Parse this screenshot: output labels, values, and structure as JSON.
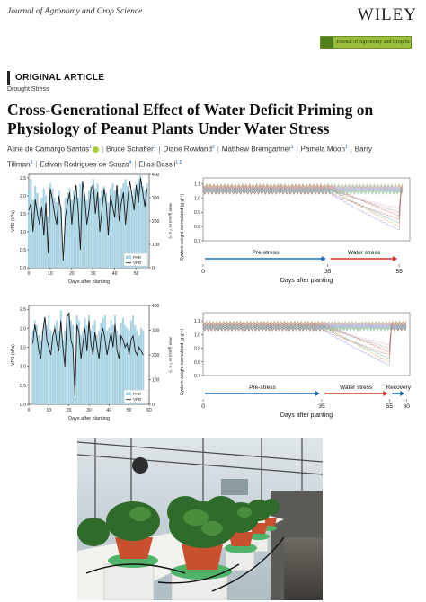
{
  "header": {
    "journal": "Journal of Agronomy and Crop Science",
    "publisher": "WILEY",
    "banner_text": "Journal of Agronomy and Crop Science"
  },
  "article": {
    "type": "ORIGINAL ARTICLE",
    "section": "Drought Stress",
    "title": "Cross-Generational Effect of Water Deficit Priming on Physiology of Peanut Plants Under Water Stress",
    "authors": [
      {
        "name": "Aline de Camargo Santos",
        "aff": "1"
      },
      {
        "name": "Bruce Schaffer",
        "aff": "1"
      },
      {
        "name": "Diane Rowland",
        "aff": "2"
      },
      {
        "name": "Matthew Bremgartner",
        "aff": "1"
      },
      {
        "name": "Pamela Moon",
        "aff": "1"
      },
      {
        "name": "Barry Tillman",
        "aff": "3"
      },
      {
        "name": "Edivan Rodrigues de Souza",
        "aff": "4"
      },
      {
        "name": "Elias Bassil",
        "aff": "1,5"
      }
    ]
  },
  "colors": {
    "par": "#a7d3e3",
    "vpd": "#1a1a1a",
    "arrow_blue": "#1f6db5",
    "arrow_red": "#d9342b"
  },
  "chart_data": [
    {
      "type": "bar",
      "id": "weather-1",
      "xlabel": "Days after planting",
      "ylabel_left": "VPD (kPa)",
      "ylabel_right": "PAR (μmol m⁻² s⁻¹)",
      "x_ticks": [
        "0",
        "10",
        "20",
        "30",
        "40",
        "50"
      ],
      "y_left_ticks": [
        "0.0",
        "0.5",
        "1.0",
        "1.5",
        "2.0",
        "2.5"
      ],
      "y_right_ticks": [
        "0",
        "100",
        "200",
        "300",
        "400"
      ],
      "ylim_left": [
        0,
        2.6
      ],
      "ylim_right": [
        0,
        400
      ],
      "legend": [
        "PAR",
        "VPD"
      ],
      "days": [
        0,
        1,
        2,
        3,
        4,
        5,
        6,
        7,
        8,
        9,
        10,
        11,
        12,
        13,
        14,
        15,
        16,
        17,
        18,
        19,
        20,
        21,
        22,
        23,
        24,
        25,
        26,
        27,
        28,
        29,
        30,
        31,
        32,
        33,
        34,
        35,
        36,
        37,
        38,
        39,
        40,
        41,
        42,
        43,
        44,
        45,
        46,
        47,
        48,
        49,
        50,
        51,
        52,
        53,
        54,
        55
      ],
      "par": [
        330,
        380,
        290,
        350,
        320,
        260,
        300,
        340,
        310,
        220,
        360,
        340,
        300,
        280,
        330,
        260,
        40,
        300,
        320,
        340,
        290,
        330,
        350,
        300,
        360,
        340,
        310,
        290,
        330,
        350,
        380,
        340,
        360,
        300,
        330,
        350,
        320,
        280,
        340,
        360,
        330,
        350,
        310,
        340,
        360,
        380,
        350,
        330,
        310,
        340,
        360,
        380,
        400,
        350,
        330,
        360
      ],
      "vpd": [
        1.6,
        1.8,
        1.0,
        1.9,
        1.5,
        1.2,
        1.7,
        0.9,
        1.8,
        0.4,
        2.2,
        1.9,
        1.5,
        1.2,
        2.0,
        1.6,
        0.2,
        1.4,
        1.8,
        2.1,
        1.2,
        1.9,
        2.3,
        1.6,
        0.5,
        2.4,
        2.0,
        1.2,
        1.6,
        2.2,
        2.3,
        1.5,
        2.1,
        1.0,
        1.6,
        2.2,
        1.8,
        0.9,
        2.0,
        1.7,
        1.4,
        2.3,
        1.3,
        1.8,
        2.1,
        1.2,
        1.9,
        2.4,
        2.0,
        1.6,
        2.3,
        1.8,
        2.5,
        2.1,
        1.7,
        2.2
      ]
    },
    {
      "type": "line",
      "id": "weight-1",
      "xlabel": "Days after planting",
      "ylabel": "System weight normalized (g g⁻¹)",
      "x_ticks": [
        "0",
        "35",
        "55"
      ],
      "y_ticks": [
        "0.7",
        "0.8",
        "0.9",
        "1.0",
        "1.1"
      ],
      "xlim": [
        0,
        58
      ],
      "ylim": [
        0.7,
        1.14
      ],
      "phases": [
        {
          "label": "Pre-stress",
          "from": 0,
          "to": 35,
          "color": "blue"
        },
        {
          "label": "Water stress",
          "from": 35,
          "to": 55,
          "color": "red"
        }
      ]
    },
    {
      "type": "bar",
      "id": "weather-2",
      "xlabel": "Days after planting",
      "ylabel_left": "VPD (kPa)",
      "ylabel_right": "PAR (μmol m⁻² s⁻¹)",
      "x_ticks": [
        "0",
        "10",
        "20",
        "30",
        "40",
        "50",
        "60"
      ],
      "y_left_ticks": [
        "0.0",
        "0.5",
        "1.0",
        "1.5",
        "2.0",
        "2.5"
      ],
      "y_right_ticks": [
        "0",
        "100",
        "200",
        "300",
        "400"
      ],
      "ylim_left": [
        0,
        2.6
      ],
      "ylim_right": [
        0,
        400
      ],
      "legend": [
        "PAR",
        "VPD"
      ],
      "days": [
        2,
        3,
        4,
        5,
        6,
        7,
        8,
        9,
        10,
        11,
        12,
        13,
        14,
        15,
        16,
        17,
        18,
        19,
        20,
        21,
        22,
        23,
        24,
        25,
        26,
        27,
        28,
        29,
        30,
        31,
        32,
        33,
        34,
        35,
        36,
        37,
        38,
        39,
        40,
        41,
        42,
        43,
        44,
        45,
        46,
        47,
        48,
        49,
        50,
        51,
        52,
        53,
        54,
        55,
        56,
        57
      ],
      "par": [
        300,
        340,
        320,
        280,
        260,
        300,
        340,
        320,
        360,
        300,
        280,
        320,
        340,
        300,
        380,
        260,
        300,
        360,
        370,
        340,
        320,
        60,
        360,
        340,
        280,
        300,
        350,
        320,
        360,
        300,
        320,
        340,
        280,
        300,
        330,
        350,
        360,
        300,
        310,
        340,
        320,
        360,
        300,
        280,
        330,
        350,
        320,
        310,
        300,
        340,
        360,
        320,
        300,
        280,
        310,
        300
      ],
      "vpd": [
        1.6,
        2.1,
        1.8,
        1.4,
        1.2,
        1.9,
        2.3,
        1.7,
        1.5,
        1.3,
        1.8,
        2.0,
        1.6,
        1.4,
        2.2,
        1.5,
        1.0,
        2.3,
        2.4,
        1.7,
        1.5,
        0.2,
        2.1,
        1.9,
        1.2,
        1.6,
        2.0,
        1.4,
        2.2,
        1.6,
        1.3,
        1.9,
        1.5,
        1.2,
        1.8,
        2.0,
        1.7,
        1.3,
        1.6,
        1.9,
        1.5,
        2.1,
        1.4,
        1.2,
        1.8,
        1.7,
        1.5,
        1.6,
        1.3,
        1.7,
        1.8,
        1.4,
        1.3,
        1.5,
        1.4,
        1.3
      ]
    },
    {
      "type": "line",
      "id": "weight-2",
      "xlabel": "Days after planting",
      "ylabel": "System weight normalized (g g⁻¹)",
      "x_ticks": [
        "0",
        "35",
        "55",
        "60"
      ],
      "y_ticks": [
        "0.7",
        "0.8",
        "0.9",
        "1.0",
        "1.1"
      ],
      "xlim": [
        0,
        61
      ],
      "ylim": [
        0.7,
        1.16
      ],
      "phases": [
        {
          "label": "Pre-stress",
          "from": 0,
          "to": 35,
          "color": "blue"
        },
        {
          "label": "Water stress",
          "from": 35,
          "to": 55,
          "color": "red"
        },
        {
          "label": "Recovery",
          "from": 55,
          "to": 60,
          "color": "blue"
        }
      ]
    }
  ]
}
